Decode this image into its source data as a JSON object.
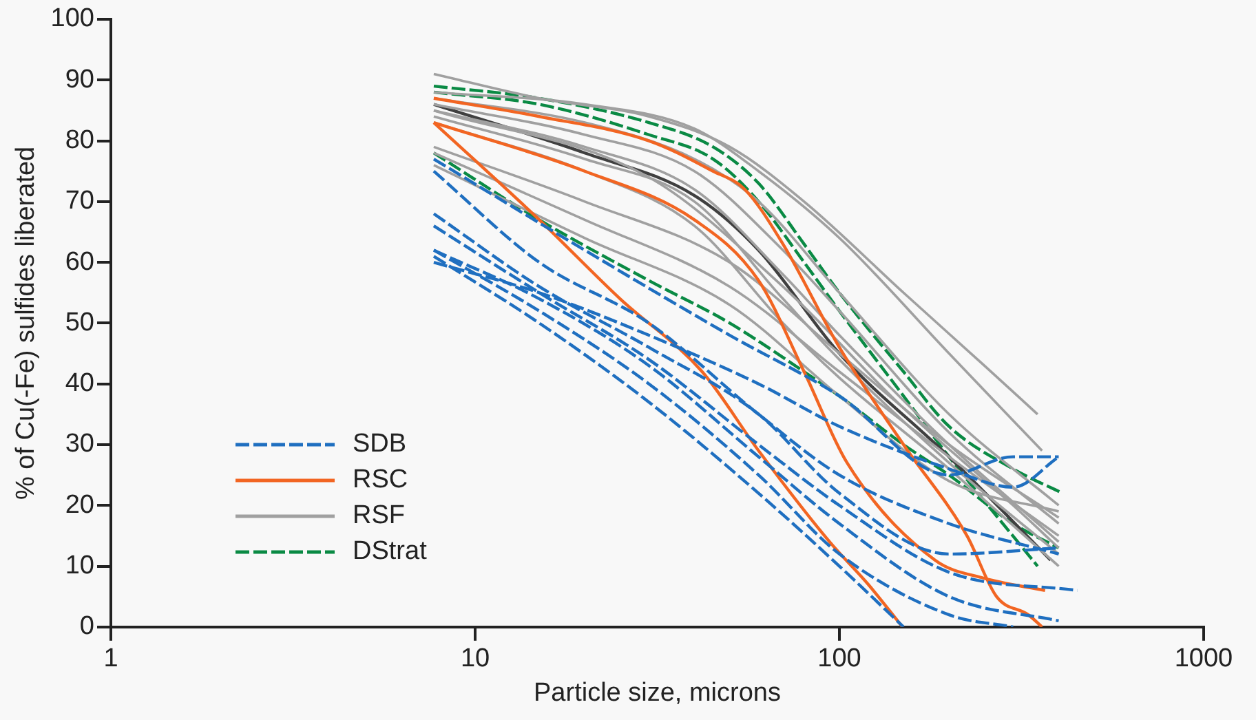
{
  "chart_data": {
    "type": "line",
    "xlabel": "Particle size, microns",
    "ylabel": "% of Cu(-Fe) sulfides liberated",
    "log": "x",
    "xlim": [
      1,
      1000
    ],
    "xticks": [
      1,
      10,
      100,
      1000
    ],
    "ylim": [
      0,
      100
    ],
    "yticks": [
      0,
      10,
      20,
      30,
      40,
      50,
      60,
      70,
      80,
      90,
      100
    ],
    "grid": false,
    "legend": "bottom left",
    "marker": "none",
    "series": [
      {
        "name": "SDB",
        "color": "#1f6fc0",
        "line_style": "dashed",
        "x": [
          7.7,
          20,
          50,
          100,
          200,
          300,
          400
        ],
        "values": [
          77,
          62,
          48,
          38,
          25,
          28,
          28
        ]
      },
      {
        "color": "#1f6fc0",
        "line_style": "dashed",
        "x": [
          7.7,
          15,
          30,
          60,
          100,
          200,
          400
        ],
        "values": [
          75,
          60,
          50,
          35,
          25,
          17,
          12
        ]
      },
      {
        "color": "#1f6fc0",
        "line_style": "dashed",
        "x": [
          7.7,
          15,
          30,
          60,
          100,
          200,
          400
        ],
        "values": [
          68,
          56,
          46,
          35,
          22,
          12,
          13
        ]
      },
      {
        "color": "#1f6fc0",
        "line_style": "dashed",
        "x": [
          7.7,
          15,
          30,
          60,
          100,
          200,
          450
        ],
        "values": [
          66,
          55,
          44,
          30,
          20,
          9,
          6
        ]
      },
      {
        "color": "#1f6fc0",
        "line_style": "dashed",
        "x": [
          7.7,
          15,
          30,
          60,
          100,
          200,
          400
        ],
        "values": [
          62,
          54,
          43,
          28,
          17,
          5,
          1
        ]
      },
      {
        "color": "#1f6fc0",
        "line_style": "dashed",
        "x": [
          7.7,
          15,
          30,
          60,
          100,
          200,
          300
        ],
        "values": [
          62,
          52,
          40,
          25,
          12,
          2,
          0
        ]
      },
      {
        "color": "#1f6fc0",
        "line_style": "dashed",
        "x": [
          7.7,
          15,
          30,
          60,
          100,
          150
        ],
        "values": [
          61,
          50,
          37,
          22,
          10,
          0
        ]
      },
      {
        "color": "#1f6fc0",
        "line_style": "dashed",
        "x": [
          7.7,
          15,
          30,
          60,
          100,
          200,
          300,
          400
        ],
        "values": [
          60,
          55,
          48,
          40,
          33,
          26,
          23,
          28
        ]
      },
      {
        "name": "RSC",
        "color": "#f26522",
        "line_style": "solid",
        "x": [
          7.7,
          15,
          30,
          45,
          55,
          70,
          100,
          150,
          224,
          270,
          330,
          360
        ],
        "values": [
          87,
          84,
          80,
          75,
          72,
          63,
          46,
          30,
          15,
          5,
          2,
          0
        ]
      },
      {
        "color": "#f26522",
        "line_style": "solid",
        "x": [
          7.7,
          15,
          25,
          42,
          60,
          94,
          120,
          149
        ],
        "values": [
          83,
          67,
          54,
          42,
          29,
          14,
          7,
          0
        ]
      },
      {
        "color": "#f26522",
        "line_style": "solid",
        "x": [
          7.7,
          20,
          40,
          60,
          80,
          105,
          183,
          250,
          367
        ],
        "values": [
          83,
          75,
          67,
          57,
          42,
          27,
          11,
          8,
          6
        ]
      },
      {
        "name": "RSF",
        "color": "#a0a0a0",
        "line_style": "solid",
        "x": [
          7.7,
          15,
          30,
          50,
          80,
          150,
          250,
          350
        ],
        "values": [
          91,
          87,
          84,
          79,
          70,
          55,
          43,
          35
        ]
      },
      {
        "color": "#a0a0a0",
        "line_style": "solid",
        "x": [
          7.7,
          20,
          40,
          60,
          100,
          200,
          360
        ],
        "values": [
          88,
          86,
          82,
          75,
          64,
          45,
          29
        ]
      },
      {
        "color": "#a0a0a0",
        "line_style": "solid",
        "x": [
          7.7,
          20,
          40,
          60,
          100,
          200,
          400
        ],
        "values": [
          87,
          83,
          77,
          70,
          55,
          35,
          20
        ]
      },
      {
        "color": "#a0a0a0",
        "line_style": "solid",
        "x": [
          7.7,
          20,
          40,
          70,
          100,
          200,
          400
        ],
        "values": [
          86,
          81,
          75,
          62,
          52,
          32,
          17
        ]
      },
      {
        "color": "#a0a0a0",
        "line_style": "solid",
        "x": [
          7.7,
          20,
          40,
          70,
          100,
          200,
          400
        ],
        "values": [
          85,
          79,
          72,
          58,
          48,
          30,
          14
        ]
      },
      {
        "color": "#a0a0a0",
        "line_style": "solid",
        "x": [
          7.7,
          20,
          40,
          70,
          100,
          200,
          400
        ],
        "values": [
          84,
          77,
          70,
          54,
          44,
          27,
          12
        ]
      },
      {
        "color": "#a0a0a0",
        "line_style": "solid",
        "x": [
          7.7,
          20,
          40,
          70,
          100,
          200,
          400
        ],
        "values": [
          83,
          75,
          66,
          50,
          41,
          26,
          10
        ]
      },
      {
        "color": "#a0a0a0",
        "line_style": "solid",
        "x": [
          7.7,
          20,
          50,
          100,
          200,
          400
        ],
        "values": [
          79,
          70,
          60,
          45,
          30,
          18
        ]
      },
      {
        "color": "#a0a0a0",
        "line_style": "solid",
        "x": [
          7.7,
          20,
          50,
          100,
          200,
          400
        ],
        "values": [
          78,
          67,
          56,
          42,
          28,
          15
        ]
      },
      {
        "color": "#a0a0a0",
        "line_style": "solid",
        "x": [
          7.7,
          20,
          50,
          100,
          200,
          400
        ],
        "values": [
          76,
          64,
          53,
          38,
          24,
          19
        ]
      },
      {
        "color": "#a0a0a0",
        "line_style": "solid",
        "x": [
          7.7,
          30,
          70,
          150,
          300,
          400
        ],
        "values": [
          85,
          74,
          56,
          36,
          20,
          13
        ]
      },
      {
        "color": "#404040",
        "line_style": "solid",
        "x": [
          7.7,
          20,
          40,
          60,
          100,
          200,
          380
        ],
        "values": [
          86,
          78,
          71,
          62,
          45,
          28,
          11
        ]
      },
      {
        "name": "DStrat",
        "color": "#0a8a44",
        "line_style": "dashed",
        "x": [
          7.7,
          15,
          30,
          45,
          60,
          80,
          100,
          150,
          200,
          300,
          410
        ],
        "values": [
          89,
          87,
          83,
          79,
          73,
          63,
          55,
          42,
          33,
          26,
          22
        ]
      },
      {
        "color": "#0a8a44",
        "line_style": "dashed",
        "x": [
          7.7,
          15,
          30,
          45,
          60,
          80,
          100,
          150,
          200,
          350
        ],
        "values": [
          88,
          86,
          81,
          77,
          70,
          60,
          52,
          38,
          28,
          10
        ]
      },
      {
        "color": "#0a8a44",
        "line_style": "dashed",
        "x": [
          7.7,
          15,
          30,
          50,
          80,
          100,
          150,
          200,
          300,
          400
        ],
        "values": [
          78,
          67,
          57,
          50,
          42,
          38,
          30,
          25,
          17,
          13
        ]
      }
    ]
  }
}
